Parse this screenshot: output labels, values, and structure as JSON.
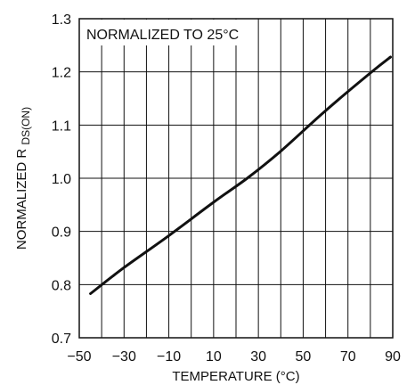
{
  "chart_data": {
    "type": "line",
    "title": "",
    "xlabel": "TEMPERATURE (°C)",
    "ylabel_main": "NORMALIZED R",
    "ylabel_sub": "DS(ON)",
    "annotation": "NORMALIZED TO 25°C",
    "xlim": [
      -50,
      90
    ],
    "ylim": [
      0.7,
      1.3
    ],
    "x_ticks": [
      -50,
      -40,
      -30,
      -20,
      -10,
      0,
      10,
      20,
      30,
      40,
      50,
      60,
      70,
      80,
      90
    ],
    "x_tick_labels": [
      "−50",
      "−30",
      "−10",
      "10",
      "30",
      "50",
      "70",
      "90"
    ],
    "x_tick_label_values": [
      -50,
      -30,
      -10,
      10,
      30,
      50,
      70,
      90
    ],
    "y_ticks": [
      0.7,
      0.8,
      0.9,
      1.0,
      1.1,
      1.2,
      1.3
    ],
    "y_tick_labels": [
      "0.7",
      "0.8",
      "0.9",
      "1.0",
      "1.1",
      "1.2",
      "1.3"
    ],
    "grid": true,
    "series": [
      {
        "x": [
          -45,
          -30,
          -10,
          10,
          25,
          40,
          60,
          80,
          89
        ],
        "y": [
          0.783,
          0.832,
          0.892,
          0.955,
          1.0,
          1.051,
          1.127,
          1.198,
          1.228
        ],
        "color": "#111111"
      }
    ]
  }
}
